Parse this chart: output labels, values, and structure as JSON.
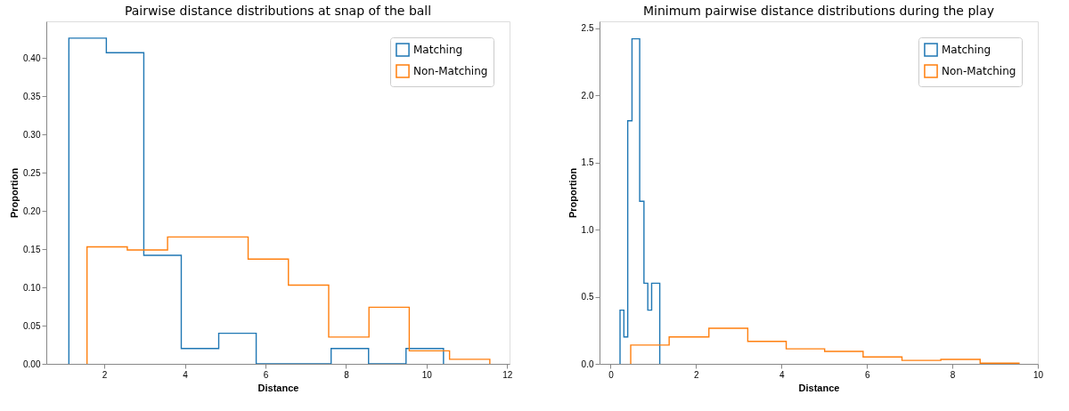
{
  "chart_data": [
    {
      "type": "step",
      "title": "Pairwise distance distributions at snap of the ball",
      "xlabel": "Distance",
      "ylabel": "Proportion",
      "legend": "top right",
      "grid": false,
      "xlim": [
        0.56,
        12.06
      ],
      "xticks": [
        2,
        4,
        6,
        8,
        10,
        12
      ],
      "ylim": [
        0,
        0.448
      ],
      "yticks": [
        {
          "value": 0,
          "label": "0.00"
        },
        {
          "value": 0.05,
          "label": "0.05"
        },
        {
          "value": 0.1,
          "label": "0.10"
        },
        {
          "value": 0.15,
          "label": "0.15"
        },
        {
          "value": 0.2,
          "label": "0.20"
        },
        {
          "value": 0.25,
          "label": "0.25"
        },
        {
          "value": 0.3,
          "label": "0.30"
        },
        {
          "value": 0.35,
          "label": "0.35"
        },
        {
          "value": 0.4,
          "label": "0.40"
        }
      ],
      "series": [
        {
          "name": "Matching",
          "color": "#1f77b4",
          "x": [
            1.12,
            1.12,
            2.05,
            2.98,
            3.91,
            4.84,
            5.77,
            6.7,
            7.63,
            8.56,
            9.49,
            10.42,
            10.42
          ],
          "values": [
            0,
            0.426,
            0.407,
            0.142,
            0.02,
            0.04,
            0,
            0,
            0.02,
            0,
            0.02,
            0.02,
            0
          ]
        },
        {
          "name": "Non-Matching",
          "color": "#ff7f0e",
          "x": [
            1.57,
            1.57,
            2.57,
            3.57,
            4.57,
            5.57,
            6.57,
            7.57,
            8.57,
            9.57,
            10.57,
            11.57,
            11.57
          ],
          "values": [
            0,
            0.153,
            0.149,
            0.166,
            0.166,
            0.137,
            0.103,
            0.035,
            0.074,
            0.017,
            0.006,
            0.006,
            0
          ]
        }
      ]
    },
    {
      "type": "step",
      "title": "Minimum pairwise distance distributions during the play",
      "xlabel": "Distance",
      "ylabel": "Proportion",
      "legend": "top right",
      "grid": false,
      "xlim": [
        -0.26,
        10.0
      ],
      "xticks": [
        0,
        2,
        4,
        6,
        8,
        10
      ],
      "ylim": [
        0,
        2.55
      ],
      "yticks": [
        {
          "value": 0,
          "label": "0.0"
        },
        {
          "value": 0.5,
          "label": "0.5"
        },
        {
          "value": 1,
          "label": "1.0"
        },
        {
          "value": 1.5,
          "label": "1.5"
        },
        {
          "value": 2,
          "label": "2.0"
        },
        {
          "value": 2.5,
          "label": "2.5"
        }
      ],
      "series": [
        {
          "name": "Matching",
          "color": "#1f77b4",
          "x": [
            0.22,
            0.22,
            0.31,
            0.4,
            0.5,
            0.59,
            0.68,
            0.78,
            0.87,
            0.96,
            1.06,
            1.15,
            1.15
          ],
          "values": [
            0,
            0.4,
            0.2,
            1.81,
            2.42,
            2.42,
            1.21,
            0.6,
            0.4,
            0.6,
            0.6,
            0.6,
            0
          ]
        },
        {
          "name": "Non-Matching",
          "color": "#ff7f0e",
          "x": [
            0.47,
            0.47,
            1.37,
            2.3,
            3.21,
            4.11,
            5.01,
            5.91,
            6.82,
            7.73,
            8.65,
            9.56,
            9.56
          ],
          "values": [
            0,
            0.14,
            0.2,
            0.265,
            0.167,
            0.112,
            0.093,
            0.051,
            0.026,
            0.033,
            0.005,
            0.005,
            0
          ]
        }
      ]
    }
  ]
}
